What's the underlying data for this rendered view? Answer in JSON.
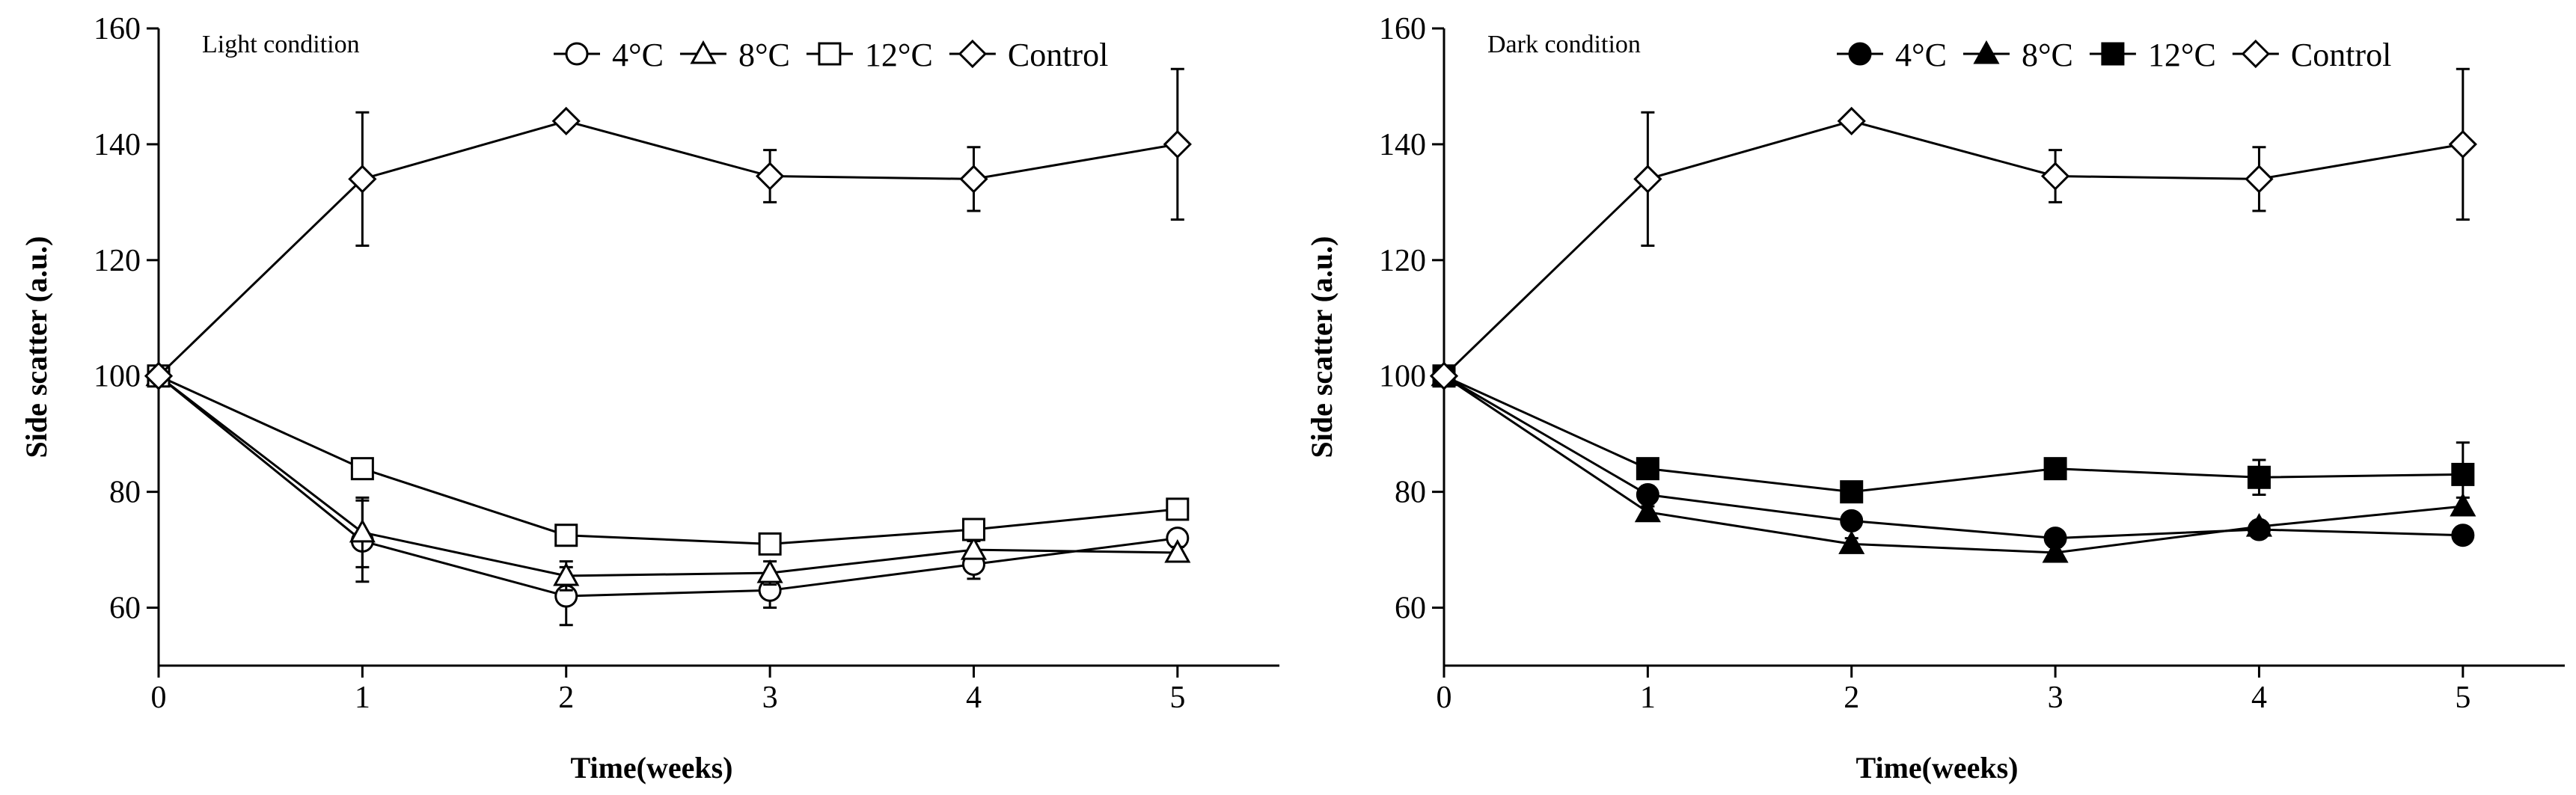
{
  "chart_data": [
    {
      "type": "line",
      "title": "Light condition",
      "xlabel": "Time(weeks)",
      "ylabel": "Side scatter (a.u.)",
      "xlim": [
        0,
        5.5
      ],
      "ylim": [
        50,
        160
      ],
      "xticks": [
        0,
        1,
        2,
        3,
        4,
        5
      ],
      "yticks": [
        60,
        80,
        100,
        120,
        140,
        160
      ],
      "x": [
        0,
        1,
        2,
        3,
        4,
        5
      ],
      "series": [
        {
          "name": "4°C",
          "marker": "circle",
          "filled": false,
          "values": [
            100,
            71.5,
            62,
            63,
            67.5,
            72
          ],
          "errors": [
            0,
            7,
            5,
            3,
            2.5,
            1.5
          ]
        },
        {
          "name": "8°C",
          "marker": "triangle",
          "filled": false,
          "values": [
            100,
            73,
            65.5,
            66,
            70,
            69.5
          ],
          "errors": [
            0,
            6,
            2.5,
            2,
            1.5,
            1
          ]
        },
        {
          "name": "12°C",
          "marker": "square",
          "filled": false,
          "values": [
            100,
            84,
            72.5,
            71,
            73.5,
            77
          ],
          "errors": [
            0,
            0,
            1,
            1,
            1,
            1
          ]
        },
        {
          "name": "Control",
          "marker": "diamond",
          "filled": false,
          "values": [
            100,
            134,
            144,
            134.5,
            134,
            140
          ],
          "errors": [
            0,
            11.5,
            0.5,
            4.5,
            5.5,
            13
          ]
        }
      ]
    },
    {
      "type": "line",
      "title": "Dark condition",
      "xlabel": "Time(weeks)",
      "ylabel": "Side scatter (a.u.)",
      "xlim": [
        0,
        5.5
      ],
      "ylim": [
        50,
        160
      ],
      "xticks": [
        0,
        1,
        2,
        3,
        4,
        5
      ],
      "yticks": [
        60,
        80,
        100,
        120,
        140,
        160
      ],
      "x": [
        0,
        1,
        2,
        3,
        4,
        5
      ],
      "series": [
        {
          "name": "4°C",
          "marker": "circle",
          "filled": true,
          "values": [
            100,
            79.5,
            75,
            72,
            73.5,
            72.5
          ],
          "errors": [
            0,
            1.5,
            1,
            1,
            1,
            1
          ]
        },
        {
          "name": "8°C",
          "marker": "triangle",
          "filled": true,
          "values": [
            100,
            76.5,
            71,
            69.5,
            74,
            77.5
          ],
          "errors": [
            0,
            1,
            1,
            1,
            1,
            1.5
          ]
        },
        {
          "name": "12°C",
          "marker": "square",
          "filled": true,
          "values": [
            100,
            84,
            80,
            84,
            82.5,
            83
          ],
          "errors": [
            0,
            1,
            1,
            1,
            3,
            5.5
          ]
        },
        {
          "name": "Control",
          "marker": "diamond",
          "filled": false,
          "values": [
            100,
            134,
            144,
            134.5,
            134,
            140
          ],
          "errors": [
            0,
            11.5,
            0.5,
            4.5,
            5.5,
            13
          ]
        }
      ]
    }
  ]
}
